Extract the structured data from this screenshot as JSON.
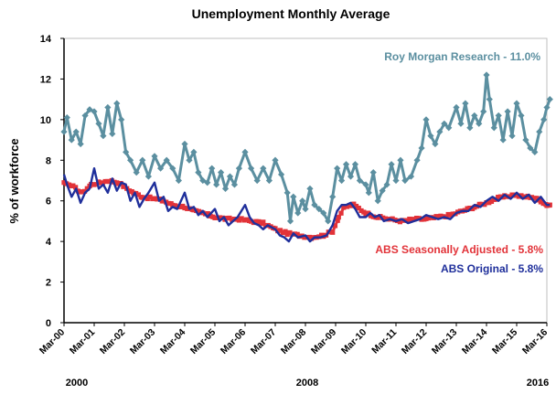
{
  "chart_data": {
    "type": "line",
    "title": "Unemployment Monthly Average",
    "xlabel": "",
    "ylabel": "% of workforce",
    "ylim": [
      0,
      14
    ],
    "y_ticks": [
      "0",
      "2",
      "4",
      "6",
      "8",
      "10",
      "12",
      "14"
    ],
    "x_ticks": [
      "Mar-00",
      "Mar-01",
      "Mar-02",
      "Mar-03",
      "Mar-04",
      "Mar-05",
      "Mar-06",
      "Mar-07",
      "Mar-08",
      "Mar-09",
      "Mar-10",
      "Mar-11",
      "Mar-12",
      "Mar-13",
      "Mar-14",
      "Mar-15",
      "Mar-16"
    ],
    "year_labels": [
      "2000",
      "2008",
      "2016"
    ],
    "grid": false,
    "series": [
      {
        "name": "Roy Morgan Research - 11.0%",
        "color": "#5b8fa0",
        "marker": "diamond",
        "anchors": [
          [
            2000.0,
            9.4
          ],
          [
            2000.1,
            10.1
          ],
          [
            2000.25,
            9.0
          ],
          [
            2000.4,
            9.4
          ],
          [
            2000.55,
            8.8
          ],
          [
            2000.7,
            10.2
          ],
          [
            2000.85,
            10.5
          ],
          [
            2001.0,
            10.4
          ],
          [
            2001.15,
            9.8
          ],
          [
            2001.3,
            9.2
          ],
          [
            2001.45,
            10.6
          ],
          [
            2001.6,
            9.3
          ],
          [
            2001.75,
            10.8
          ],
          [
            2001.9,
            10.0
          ],
          [
            2002.05,
            8.4
          ],
          [
            2002.2,
            8.0
          ],
          [
            2002.4,
            7.4
          ],
          [
            2002.6,
            8.0
          ],
          [
            2002.8,
            7.2
          ],
          [
            2003.0,
            8.2
          ],
          [
            2003.2,
            7.6
          ],
          [
            2003.4,
            8.0
          ],
          [
            2003.6,
            7.6
          ],
          [
            2003.8,
            7.0
          ],
          [
            2004.0,
            8.8
          ],
          [
            2004.15,
            8.0
          ],
          [
            2004.3,
            8.4
          ],
          [
            2004.45,
            7.4
          ],
          [
            2004.6,
            7.0
          ],
          [
            2004.75,
            6.9
          ],
          [
            2004.9,
            7.6
          ],
          [
            2005.05,
            6.8
          ],
          [
            2005.2,
            7.4
          ],
          [
            2005.35,
            6.6
          ],
          [
            2005.5,
            7.2
          ],
          [
            2005.65,
            6.8
          ],
          [
            2005.8,
            7.6
          ],
          [
            2006.0,
            8.4
          ],
          [
            2006.2,
            7.6
          ],
          [
            2006.4,
            7.0
          ],
          [
            2006.6,
            7.6
          ],
          [
            2006.8,
            7.0
          ],
          [
            2007.0,
            8.0
          ],
          [
            2007.2,
            7.3
          ],
          [
            2007.4,
            6.4
          ],
          [
            2007.5,
            5.0
          ],
          [
            2007.6,
            6.2
          ],
          [
            2007.75,
            5.4
          ],
          [
            2007.9,
            6.0
          ],
          [
            2008.0,
            5.6
          ],
          [
            2008.15,
            6.6
          ],
          [
            2008.3,
            5.8
          ],
          [
            2008.45,
            5.6
          ],
          [
            2008.6,
            5.4
          ],
          [
            2008.75,
            5.0
          ],
          [
            2008.9,
            6.2
          ],
          [
            2009.05,
            7.6
          ],
          [
            2009.2,
            7.0
          ],
          [
            2009.35,
            7.8
          ],
          [
            2009.5,
            7.2
          ],
          [
            2009.65,
            7.8
          ],
          [
            2009.8,
            7.0
          ],
          [
            2010.0,
            6.8
          ],
          [
            2010.1,
            6.4
          ],
          [
            2010.25,
            7.4
          ],
          [
            2010.4,
            6.0
          ],
          [
            2010.55,
            6.5
          ],
          [
            2010.7,
            6.8
          ],
          [
            2010.85,
            7.8
          ],
          [
            2011.0,
            7.0
          ],
          [
            2011.15,
            8.0
          ],
          [
            2011.3,
            7.0
          ],
          [
            2011.5,
            7.2
          ],
          [
            2011.7,
            8.0
          ],
          [
            2011.85,
            8.6
          ],
          [
            2012.0,
            10.0
          ],
          [
            2012.15,
            9.2
          ],
          [
            2012.3,
            8.8
          ],
          [
            2012.45,
            9.4
          ],
          [
            2012.6,
            9.8
          ],
          [
            2012.75,
            9.6
          ],
          [
            2013.0,
            10.6
          ],
          [
            2013.15,
            9.8
          ],
          [
            2013.3,
            10.8
          ],
          [
            2013.45,
            9.6
          ],
          [
            2013.6,
            10.2
          ],
          [
            2013.75,
            9.8
          ],
          [
            2013.9,
            10.4
          ],
          [
            2014.0,
            12.2
          ],
          [
            2014.1,
            11.0
          ],
          [
            2014.25,
            9.6
          ],
          [
            2014.4,
            10.2
          ],
          [
            2014.55,
            9.0
          ],
          [
            2014.7,
            10.4
          ],
          [
            2014.85,
            9.2
          ],
          [
            2015.0,
            10.8
          ],
          [
            2015.15,
            10.2
          ],
          [
            2015.3,
            9.0
          ],
          [
            2015.45,
            8.6
          ],
          [
            2015.6,
            8.4
          ],
          [
            2015.75,
            9.4
          ],
          [
            2015.9,
            10.0
          ],
          [
            2016.0,
            10.6
          ],
          [
            2016.1,
            11.0
          ]
        ]
      },
      {
        "name": "ABS Seasonally Adjusted - 5.8%",
        "color": "#e23339",
        "marker": "square",
        "anchors": [
          [
            2000.0,
            6.9
          ],
          [
            2000.3,
            6.7
          ],
          [
            2000.6,
            6.4
          ],
          [
            2000.9,
            6.8
          ],
          [
            2001.2,
            6.9
          ],
          [
            2001.5,
            7.0
          ],
          [
            2001.8,
            6.9
          ],
          [
            2002.0,
            6.7
          ],
          [
            2002.3,
            6.4
          ],
          [
            2002.6,
            6.2
          ],
          [
            2003.0,
            6.1
          ],
          [
            2003.3,
            6.0
          ],
          [
            2003.6,
            5.8
          ],
          [
            2004.0,
            5.7
          ],
          [
            2004.3,
            5.5
          ],
          [
            2004.6,
            5.4
          ],
          [
            2005.0,
            5.2
          ],
          [
            2005.4,
            5.1
          ],
          [
            2005.8,
            5.1
          ],
          [
            2006.2,
            5.0
          ],
          [
            2006.6,
            4.9
          ],
          [
            2007.0,
            4.6
          ],
          [
            2007.4,
            4.4
          ],
          [
            2007.8,
            4.3
          ],
          [
            2008.2,
            4.2
          ],
          [
            2008.6,
            4.3
          ],
          [
            2008.9,
            4.5
          ],
          [
            2009.1,
            5.2
          ],
          [
            2009.3,
            5.7
          ],
          [
            2009.6,
            5.8
          ],
          [
            2010.0,
            5.4
          ],
          [
            2010.4,
            5.2
          ],
          [
            2010.8,
            5.1
          ],
          [
            2011.2,
            5.0
          ],
          [
            2011.6,
            5.1
          ],
          [
            2012.0,
            5.1
          ],
          [
            2012.4,
            5.2
          ],
          [
            2012.8,
            5.3
          ],
          [
            2013.2,
            5.5
          ],
          [
            2013.6,
            5.7
          ],
          [
            2014.0,
            5.9
          ],
          [
            2014.3,
            6.1
          ],
          [
            2014.6,
            6.2
          ],
          [
            2014.9,
            6.3
          ],
          [
            2015.2,
            6.2
          ],
          [
            2015.5,
            6.2
          ],
          [
            2015.8,
            6.0
          ],
          [
            2016.0,
            5.8
          ],
          [
            2016.1,
            5.8
          ]
        ]
      },
      {
        "name": "ABS Original - 5.8%",
        "color": "#1f2f9b",
        "marker": "none",
        "anchors": [
          [
            2000.0,
            7.3
          ],
          [
            2000.1,
            6.8
          ],
          [
            2000.25,
            6.2
          ],
          [
            2000.4,
            6.6
          ],
          [
            2000.55,
            5.9
          ],
          [
            2000.7,
            6.4
          ],
          [
            2000.85,
            6.6
          ],
          [
            2001.0,
            7.6
          ],
          [
            2001.15,
            6.6
          ],
          [
            2001.3,
            6.8
          ],
          [
            2001.45,
            6.4
          ],
          [
            2001.6,
            7.1
          ],
          [
            2001.75,
            6.5
          ],
          [
            2001.9,
            6.9
          ],
          [
            2002.05,
            6.8
          ],
          [
            2002.2,
            6.0
          ],
          [
            2002.35,
            6.4
          ],
          [
            2002.5,
            5.7
          ],
          [
            2002.65,
            6.1
          ],
          [
            2002.8,
            6.4
          ],
          [
            2003.0,
            6.9
          ],
          [
            2003.15,
            6.0
          ],
          [
            2003.3,
            6.2
          ],
          [
            2003.45,
            5.5
          ],
          [
            2003.6,
            5.7
          ],
          [
            2003.75,
            5.6
          ],
          [
            2004.0,
            6.4
          ],
          [
            2004.15,
            5.6
          ],
          [
            2004.3,
            5.7
          ],
          [
            2004.45,
            5.3
          ],
          [
            2004.6,
            5.5
          ],
          [
            2004.75,
            5.2
          ],
          [
            2005.0,
            5.6
          ],
          [
            2005.15,
            5.0
          ],
          [
            2005.3,
            5.2
          ],
          [
            2005.45,
            4.8
          ],
          [
            2005.6,
            5.0
          ],
          [
            2005.75,
            5.2
          ],
          [
            2006.0,
            5.8
          ],
          [
            2006.15,
            5.2
          ],
          [
            2006.3,
            4.9
          ],
          [
            2006.45,
            4.8
          ],
          [
            2006.6,
            4.6
          ],
          [
            2006.75,
            4.8
          ],
          [
            2007.0,
            4.6
          ],
          [
            2007.15,
            4.3
          ],
          [
            2007.3,
            4.2
          ],
          [
            2007.45,
            4.0
          ],
          [
            2007.6,
            4.4
          ],
          [
            2007.75,
            4.2
          ],
          [
            2008.0,
            4.3
          ],
          [
            2008.15,
            4.0
          ],
          [
            2008.3,
            4.2
          ],
          [
            2008.5,
            4.2
          ],
          [
            2008.7,
            4.3
          ],
          [
            2008.9,
            4.8
          ],
          [
            2009.05,
            5.5
          ],
          [
            2009.2,
            5.8
          ],
          [
            2009.35,
            5.8
          ],
          [
            2009.5,
            5.9
          ],
          [
            2009.65,
            5.6
          ],
          [
            2009.8,
            5.2
          ],
          [
            2010.0,
            5.2
          ],
          [
            2010.15,
            5.4
          ],
          [
            2010.3,
            5.2
          ],
          [
            2010.45,
            5.3
          ],
          [
            2010.6,
            5.0
          ],
          [
            2010.8,
            5.1
          ],
          [
            2011.0,
            5.0
          ],
          [
            2011.2,
            5.1
          ],
          [
            2011.4,
            4.9
          ],
          [
            2011.6,
            5.0
          ],
          [
            2011.8,
            5.1
          ],
          [
            2012.0,
            5.3
          ],
          [
            2012.2,
            5.2
          ],
          [
            2012.4,
            5.1
          ],
          [
            2012.6,
            5.2
          ],
          [
            2012.8,
            5.1
          ],
          [
            2013.0,
            5.4
          ],
          [
            2013.2,
            5.5
          ],
          [
            2013.4,
            5.5
          ],
          [
            2013.6,
            5.8
          ],
          [
            2013.8,
            5.7
          ],
          [
            2014.0,
            6.0
          ],
          [
            2014.2,
            6.2
          ],
          [
            2014.4,
            6.0
          ],
          [
            2014.6,
            6.3
          ],
          [
            2014.8,
            6.1
          ],
          [
            2015.0,
            6.4
          ],
          [
            2015.2,
            6.1
          ],
          [
            2015.4,
            6.3
          ],
          [
            2015.6,
            5.9
          ],
          [
            2015.8,
            6.2
          ],
          [
            2016.0,
            5.8
          ],
          [
            2016.1,
            5.8
          ]
        ]
      }
    ]
  }
}
